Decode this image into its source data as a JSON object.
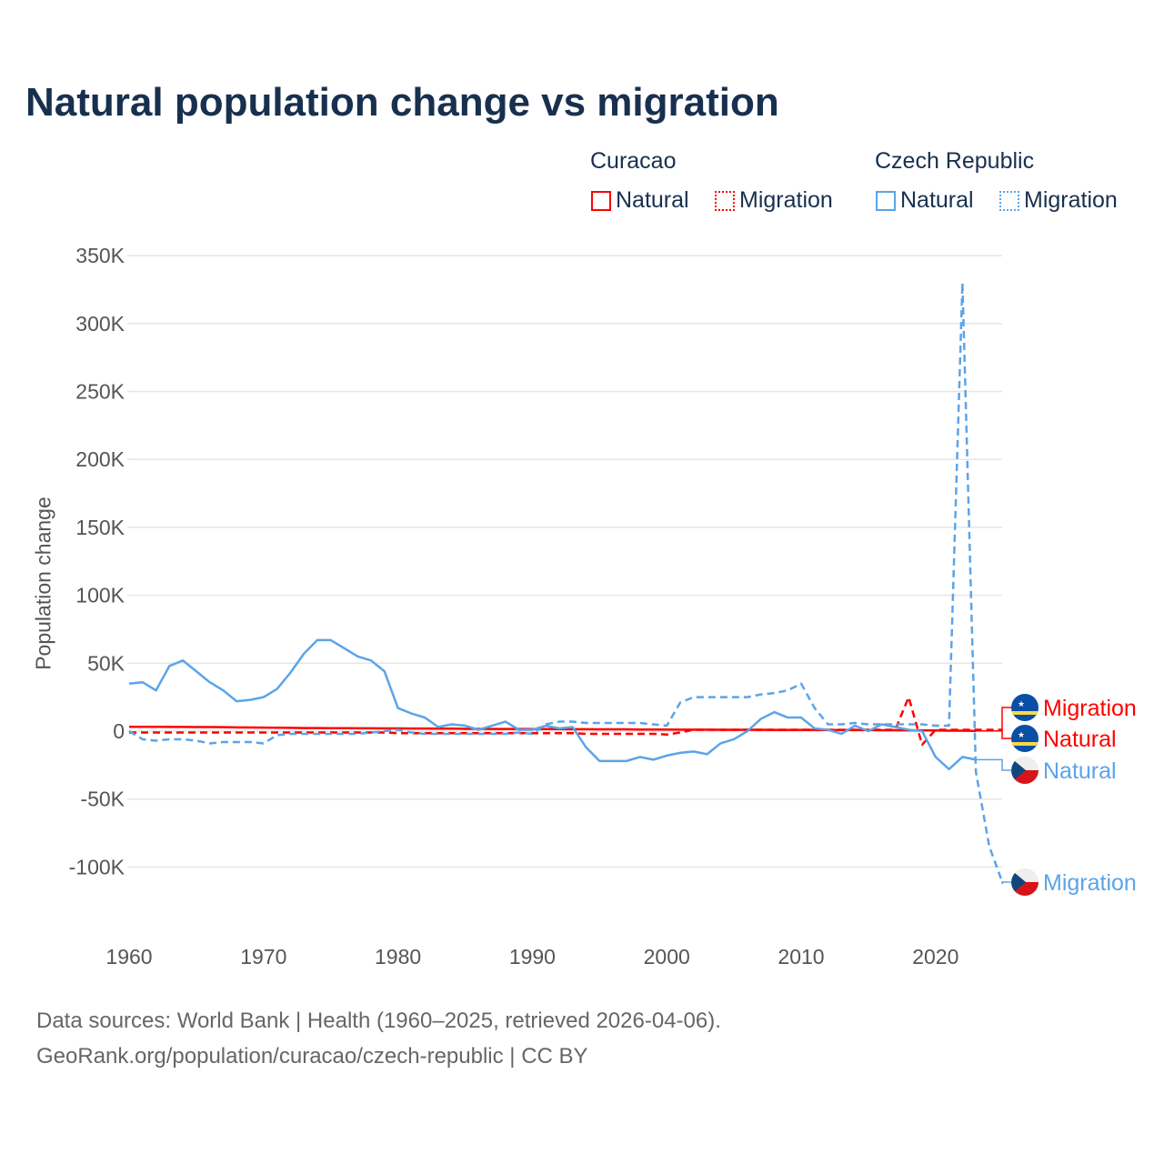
{
  "title": "Natural population change vs migration",
  "legend": {
    "groups": [
      {
        "name": "Curacao",
        "items": [
          {
            "label": "Natural",
            "style": "solid"
          },
          {
            "label": "Migration",
            "style": "dotted"
          }
        ],
        "color": "#ff0000"
      },
      {
        "name": "Czech Republic",
        "items": [
          {
            "label": "Natural",
            "style": "solid"
          },
          {
            "label": "Migration",
            "style": "dotted"
          }
        ],
        "color": "#5ba4e8"
      }
    ]
  },
  "footer": {
    "line1": "Data sources: World Bank | Health (1960–2025, retrieved 2026-04-06).",
    "line2": "GeoRank.org/population/curacao/czech-republic | CC BY"
  },
  "chart_data": {
    "type": "line",
    "title": "Natural population change vs migration",
    "xlabel": "",
    "ylabel": "Population change",
    "xlim": [
      1960,
      2025
    ],
    "ylim": [
      -130000,
      350000
    ],
    "x_ticks": [
      "1960",
      "1970",
      "1980",
      "1990",
      "2000",
      "2010",
      "2020"
    ],
    "y_ticks": [
      {
        "v": 350000,
        "label": "350K"
      },
      {
        "v": 300000,
        "label": "300K"
      },
      {
        "v": 250000,
        "label": "250K"
      },
      {
        "v": 200000,
        "label": "200K"
      },
      {
        "v": 150000,
        "label": "150K"
      },
      {
        "v": 100000,
        "label": "100K"
      },
      {
        "v": 50000,
        "label": "50K"
      },
      {
        "v": 0,
        "label": "0"
      },
      {
        "v": -50000,
        "label": "-50K"
      },
      {
        "v": -100000,
        "label": "-100K"
      }
    ],
    "grid": true,
    "series": [
      {
        "name": "Curacao Natural",
        "end_label": "Natural",
        "flag": "curacao",
        "color": "#ff0000",
        "dash": "none",
        "start": 1960,
        "values_k": [
          3.2,
          3.2,
          3.2,
          3.1,
          3.1,
          3.0,
          3.0,
          2.9,
          2.8,
          2.7,
          2.6,
          2.5,
          2.4,
          2.3,
          2.3,
          2.2,
          2.2,
          2.1,
          2.1,
          2.0,
          2.0,
          1.9,
          1.9,
          1.8,
          1.8,
          1.7,
          1.7,
          1.6,
          1.6,
          1.6,
          1.5,
          1.5,
          1.5,
          1.4,
          1.4,
          1.3,
          1.3,
          1.3,
          1.2,
          1.2,
          1.2,
          1.1,
          1.1,
          1.1,
          1.0,
          1.0,
          1.0,
          1.0,
          0.9,
          0.9,
          0.9,
          0.9,
          0.8,
          0.8,
          0.8,
          0.8,
          0.7,
          0.7,
          0.6,
          0.6,
          0.5,
          0.3,
          0.3,
          0.2
        ]
      },
      {
        "name": "Curacao Migration",
        "end_label": "Migration",
        "flag": "curacao",
        "color": "#ff0000",
        "dash": "8,5",
        "start": 1960,
        "values_k": [
          -1,
          -1,
          -1,
          -1,
          -1,
          -1,
          -1,
          -1,
          -1,
          -1,
          -1,
          -1,
          -1,
          -1,
          -1,
          -1,
          -1,
          -1,
          -1,
          -1,
          -1.5,
          -1.5,
          -1.5,
          -1.5,
          -1.5,
          -1.5,
          -1.5,
          -1.5,
          -1.5,
          -1.5,
          -1.5,
          -1.5,
          -1.5,
          -1.5,
          -2,
          -2,
          -2,
          -2,
          -2,
          -2,
          -2.5,
          -1,
          1,
          1,
          1,
          1,
          1,
          1,
          1,
          1,
          1,
          1,
          1,
          1,
          1,
          1,
          1,
          1,
          25,
          -10,
          1,
          1,
          1,
          1,
          1,
          1
        ]
      },
      {
        "name": "Czech Republic Natural",
        "end_label": "Natural",
        "flag": "czech",
        "color": "#5ba4e8",
        "dash": "none",
        "start": 1960,
        "values_k": [
          35,
          36,
          30,
          48,
          52,
          44,
          36,
          30,
          22,
          23,
          25,
          31,
          43,
          57,
          67,
          67,
          61,
          55,
          52,
          44,
          17,
          13,
          10,
          3,
          5,
          4,
          1,
          4,
          7,
          1,
          1,
          4,
          2,
          3,
          -12,
          -22,
          -22,
          -22,
          -19,
          -21,
          -18,
          -16,
          -15,
          -17,
          -9,
          -6,
          0,
          9,
          14,
          10,
          10,
          2,
          1,
          -2,
          4,
          0,
          5,
          3,
          1,
          0,
          -19,
          -28,
          -19,
          -21
        ]
      },
      {
        "name": "Czech Republic Migration",
        "end_label": "Migration",
        "flag": "czech",
        "color": "#5ba4e8",
        "dash": "8,5",
        "start": 1960,
        "values_k": [
          0,
          -6,
          -7,
          -6,
          -6,
          -7,
          -9,
          -8,
          -8,
          -8,
          -9,
          -3,
          -2,
          -2,
          -2,
          -2,
          -2,
          -2,
          -1,
          0,
          1,
          -1,
          -2,
          -2,
          -2,
          -2,
          -2,
          -2,
          -2,
          -1,
          -2,
          5,
          7,
          7,
          6,
          6,
          6,
          6,
          6,
          5,
          4,
          21,
          25,
          25,
          25,
          25,
          25,
          27,
          28,
          30,
          35,
          17,
          5,
          5,
          6,
          5,
          5,
          5,
          5,
          5,
          4,
          4,
          330,
          -30,
          -85,
          -112
        ]
      }
    ]
  }
}
